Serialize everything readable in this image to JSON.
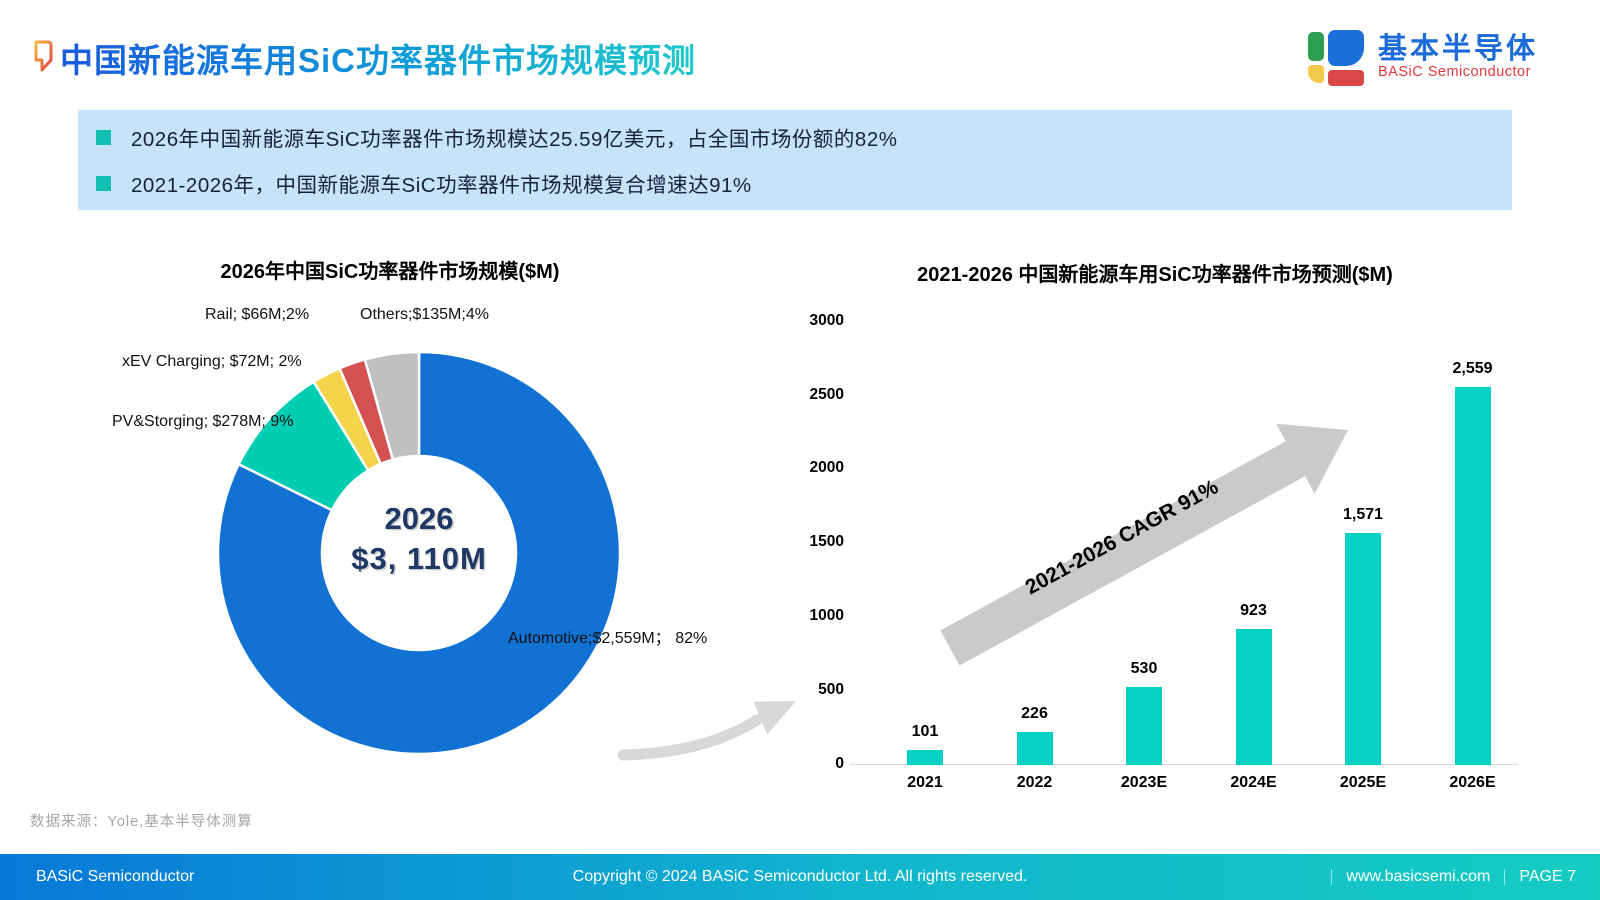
{
  "header": {
    "title": "中国新能源车用SiC功率器件市场规模预测",
    "logo": {
      "cn": "基本半导体",
      "en": "BASiC Semiconductor"
    }
  },
  "highlights": {
    "bullet1": "2026年中国新能源车SiC功率器件市场规模达25.59亿美元，占全国市场份额的82%",
    "bullet2": "2021-2026年，中国新能源车SiC功率器件市场规模复合增速达91%"
  },
  "chart_data": [
    {
      "type": "pie",
      "title": "2026年中国SiC功率器件市场规模($M)",
      "center_label": {
        "year": "2026",
        "total": "$3, 110M"
      },
      "slices": [
        {
          "name": "Automotive",
          "value": 2559,
          "pct": "82%",
          "color": "#1172d4",
          "label": "Automotive;$2,559M；  82%"
        },
        {
          "name": "PV&Storging",
          "value": 278,
          "pct": "9%",
          "color": "#00cdb2",
          "label": "PV&Storging; $278M; 9%"
        },
        {
          "name": "xEV Charging",
          "value": 72,
          "pct": "2%",
          "color": "#f4d44a",
          "label": "xEV Charging; $72M; 2%"
        },
        {
          "name": "Rail",
          "value": 66,
          "pct": "2%",
          "color": "#d55151",
          "label": "Rail; $66M;2%"
        },
        {
          "name": "Others",
          "value": 135,
          "pct": "4%",
          "color": "#c0c0c0",
          "label": "Others;$135M;4%"
        }
      ],
      "total_label": "$3,110M"
    },
    {
      "type": "bar",
      "title": "2021-2026 中国新能源车用SiC功率器件市场预测($M)",
      "categories": [
        "2021",
        "2022",
        "2023E",
        "2024E",
        "2025E",
        "2026E"
      ],
      "values": [
        101,
        226,
        530,
        923,
        1571,
        2559
      ],
      "value_labels": [
        "101",
        "226",
        "530",
        "923",
        "1,571",
        "2,559"
      ],
      "ylabel": "",
      "xlabel": "",
      "ylim": [
        0,
        3000
      ],
      "ytick_step": 500,
      "grid": false,
      "bar_color": "#03d2c4",
      "annotation": "2021-2026 CAGR 91%"
    }
  ],
  "source_note": "数据来源：Yole,基本半导体测算",
  "footer": {
    "left": "BASiC Semiconductor",
    "center": "Copyright © 2024 BASiC Semiconductor Ltd. All rights reserved.",
    "site": "www.basicsemi.com",
    "page": "PAGE 7"
  }
}
